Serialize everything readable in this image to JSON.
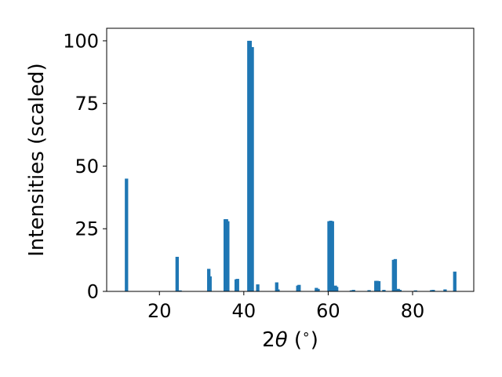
{
  "chart_data": {
    "type": "bar",
    "title": "",
    "xlabel_parts": {
      "pre": "2",
      "theta": "θ",
      "mid": " (",
      "degree": "∘",
      "post": ")"
    },
    "ylabel": "Intensities (scaled)",
    "xlim": [
      7.5,
      94.5
    ],
    "ylim": [
      0,
      105
    ],
    "xticks": [
      20,
      40,
      60,
      80
    ],
    "yticks": [
      0,
      25,
      50,
      75,
      100
    ],
    "bar_width": 0.8,
    "bar_color": "#1f77b4",
    "grid": false,
    "x": [
      12.2,
      24.2,
      24.9,
      31.7,
      32.0,
      35.6,
      35.9,
      36.2,
      38.2,
      38.5,
      41.2,
      41.5,
      42.0,
      43.3,
      47.8,
      48.1,
      52.8,
      53.1,
      57.2,
      57.6,
      60.2,
      60.6,
      61.0,
      61.7,
      62.0,
      65.5,
      66.0,
      69.7,
      71.3,
      71.6,
      72.0,
      73.2,
      75.5,
      75.9,
      76.6,
      77.0,
      80.7,
      84.5,
      84.9,
      87.7,
      90.0
    ],
    "values": [
      45.0,
      13.8,
      0.4,
      9.0,
      6.0,
      28.8,
      28.8,
      28.0,
      4.8,
      5.0,
      100.0,
      100.0,
      97.5,
      2.8,
      3.6,
      0.8,
      2.3,
      2.6,
      1.4,
      1.0,
      28.0,
      28.2,
      28.0,
      2.3,
      1.8,
      0.4,
      0.6,
      0.5,
      4.2,
      4.2,
      4.1,
      0.6,
      12.6,
      12.9,
      1.0,
      0.6,
      0.4,
      0.5,
      0.6,
      0.8,
      7.9
    ]
  }
}
